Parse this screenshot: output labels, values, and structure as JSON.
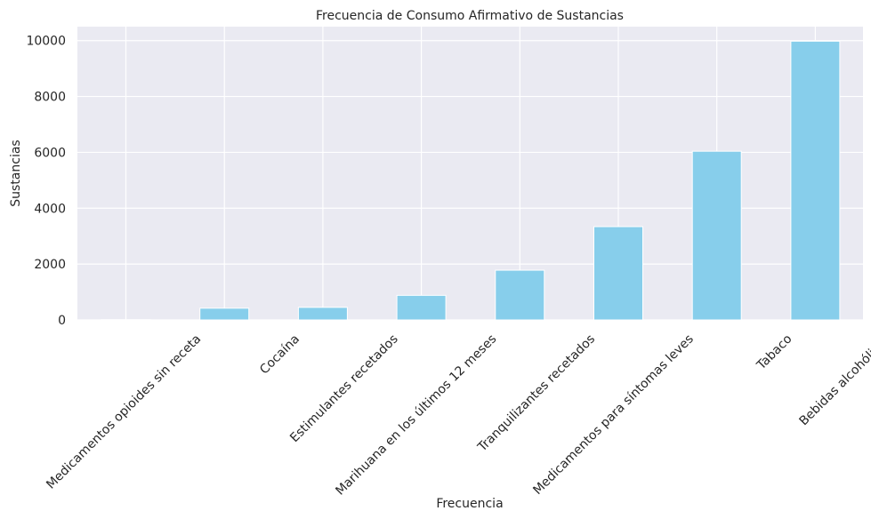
{
  "chart_data": {
    "type": "bar",
    "title": "Frecuencia de Consumo Afirmativo de Sustancias",
    "xlabel": "Frecuencia",
    "ylabel": "Sustancias",
    "categories": [
      "Medicamentos opioides sin receta",
      "Cocaína",
      "Estimulantes recetados",
      "Marihuana en los últimos 12 meses",
      "Tranquilizantes recetados",
      "Medicamentos para síntomas leves",
      "Tabaco",
      "Bebidas alcohólicas"
    ],
    "values": [
      10,
      420,
      450,
      880,
      1780,
      3340,
      6040,
      9980
    ],
    "ylim": [
      0,
      10500
    ],
    "yticks": [
      0,
      2000,
      4000,
      6000,
      8000,
      10000
    ],
    "grid": true,
    "bar_color": "#87CEEB",
    "background_color": "#EAEAF2"
  }
}
